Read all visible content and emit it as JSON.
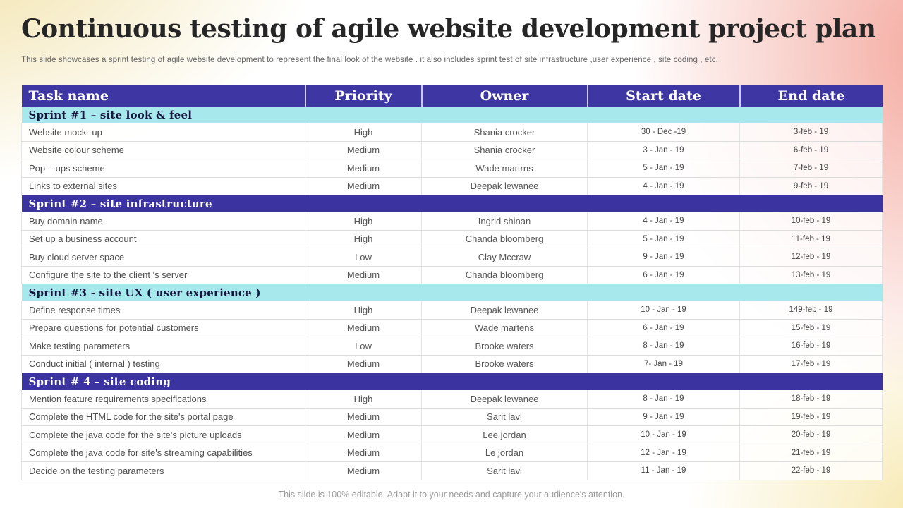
{
  "slide": {
    "title": "Continuous testing of agile website development project plan",
    "subtitle": "This slide showcases a sprint testing of agile website development to represent the final look of the website . it also includes sprint test of site infrastructure ,user experience , site coding , etc.",
    "footer_note": "This slide is 100% editable. Adapt it to your needs and capture your audience's attention."
  },
  "colors": {
    "header_bg": "#3E36A3",
    "sprint_dark_bg": "#3B33A0",
    "sprint_cyan_bg": "#A7E8EC",
    "corner_top_left_yellow": "#F0DE9E",
    "corner_right_pink": "#F3A499",
    "corner_bottom_right_yellow": "#F6E6A8"
  },
  "table": {
    "columns": [
      "Task name",
      "Priority",
      "Owner",
      "Start date",
      "End date"
    ],
    "sections": [
      {
        "header": "Sprint #1 – site look & feel",
        "style": "cyan",
        "rows": [
          [
            "Website mock- up",
            "High",
            "Shania crocker",
            "30 - Dec -19",
            "3-feb - 19"
          ],
          [
            "Website colour scheme",
            "Medium",
            "Shania crocker",
            "3 - Jan - 19",
            "6-feb - 19"
          ],
          [
            "Pop – ups scheme",
            "Medium",
            "Wade martrns",
            "5 - Jan - 19",
            "7-feb - 19"
          ],
          [
            "Links to external sites",
            "Medium",
            "Deepak lewanee",
            "4 - Jan - 19",
            "9-feb - 19"
          ]
        ]
      },
      {
        "header": "Sprint #2 – site infrastructure",
        "style": "dark",
        "rows": [
          [
            "Buy domain name",
            "High",
            "Ingrid shinan",
            "4 - Jan - 19",
            "10-feb - 19"
          ],
          [
            "Set up a business account",
            "High",
            "Chanda bloomberg",
            "5 - Jan - 19",
            "11-feb - 19"
          ],
          [
            "Buy cloud server space",
            "Low",
            "Clay Mccraw",
            "9 - Jan - 19",
            "12-feb - 19"
          ],
          [
            "Configure the site to the client 's server",
            "Medium",
            "Chanda bloomberg",
            "6 - Jan - 19",
            "13-feb - 19"
          ]
        ]
      },
      {
        "header": "Sprint #3 - site UX ( user experience )",
        "style": "cyan",
        "rows": [
          [
            "Define response times",
            "High",
            "Deepak lewanee",
            "10 - Jan - 19",
            "149-feb - 19"
          ],
          [
            "Prepare questions for potential customers",
            "Medium",
            "Wade martens",
            "6 - Jan - 19",
            "15-feb - 19"
          ],
          [
            "Make testing parameters",
            "Low",
            "Brooke waters",
            "8 - Jan - 19",
            "16-feb - 19"
          ],
          [
            "Conduct initial ( internal ) testing",
            "Medium",
            "Brooke waters",
            "7- Jan - 19",
            "17-feb - 19"
          ]
        ]
      },
      {
        "header": "Sprint # 4 – site coding",
        "style": "dark",
        "rows": [
          [
            "Mention feature requirements specifications",
            "High",
            "Deepak lewanee",
            "8 - Jan - 19",
            "18-feb - 19"
          ],
          [
            "Complete the HTML code for the site's portal page",
            "Medium",
            "Sarit lavi",
            "9 - Jan - 19",
            "19-feb - 19"
          ],
          [
            "Complete the java code for the site's picture uploads",
            "Medium",
            "Lee jordan",
            "10 - Jan - 19",
            "20-feb - 19"
          ],
          [
            "Complete the java code for site's streaming capabilities",
            "Medium",
            "Le jordan",
            "12 - Jan - 19",
            "21-feb - 19"
          ],
          [
            "Decide on the testing parameters",
            "Medium",
            "Sarit lavi",
            "11 - Jan - 19",
            "22-feb - 19"
          ]
        ]
      }
    ]
  }
}
